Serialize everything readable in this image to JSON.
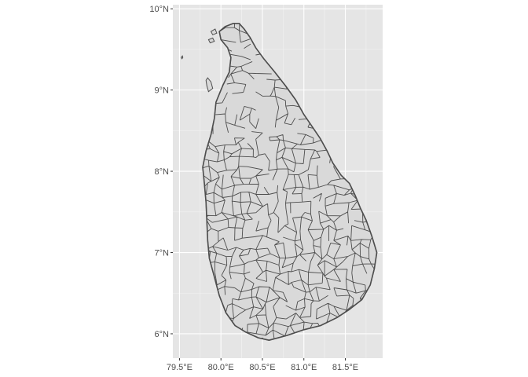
{
  "map": {
    "country": "Sri Lanka",
    "projection": "geographic",
    "x_range": [
      79.42,
      81.95
    ],
    "y_range": [
      5.7,
      10.05
    ],
    "grid": true,
    "panel_color": "#e5e5e5",
    "grid_color": "#ffffff",
    "land_fill": "#d9d9d9",
    "border_color": "#4d4d4d",
    "x_ticks": [
      {
        "value": 79.5,
        "label": "79.5°E"
      },
      {
        "value": 80.0,
        "label": "80.0°E"
      },
      {
        "value": 80.5,
        "label": "80.5°E"
      },
      {
        "value": 81.0,
        "label": "81.0°E"
      },
      {
        "value": 81.5,
        "label": "81.5°E"
      }
    ],
    "y_ticks": [
      {
        "value": 6,
        "label": "6°N"
      },
      {
        "value": 7,
        "label": "7°N"
      },
      {
        "value": 8,
        "label": "8°N"
      },
      {
        "value": 9,
        "label": "9°N"
      },
      {
        "value": 10,
        "label": "10°N"
      }
    ],
    "outline": [
      [
        80.58,
        5.92
      ],
      [
        80.45,
        5.95
      ],
      [
        80.3,
        6.02
      ],
      [
        80.17,
        6.1
      ],
      [
        80.06,
        6.26
      ],
      [
        79.98,
        6.47
      ],
      [
        79.92,
        6.7
      ],
      [
        79.86,
        6.93
      ],
      [
        79.84,
        7.15
      ],
      [
        79.83,
        7.38
      ],
      [
        79.82,
        7.62
      ],
      [
        79.8,
        7.85
      ],
      [
        79.78,
        8.05
      ],
      [
        79.82,
        8.25
      ],
      [
        79.88,
        8.45
      ],
      [
        79.92,
        8.65
      ],
      [
        79.94,
        8.85
      ],
      [
        80.02,
        9.05
      ],
      [
        80.1,
        9.22
      ],
      [
        80.12,
        9.4
      ],
      [
        80.08,
        9.52
      ],
      [
        80.0,
        9.62
      ],
      [
        79.98,
        9.72
      ],
      [
        80.05,
        9.78
      ],
      [
        80.15,
        9.82
      ],
      [
        80.22,
        9.82
      ],
      [
        80.28,
        9.75
      ],
      [
        80.35,
        9.65
      ],
      [
        80.42,
        9.52
      ],
      [
        80.52,
        9.38
      ],
      [
        80.65,
        9.22
      ],
      [
        80.78,
        9.05
      ],
      [
        80.9,
        8.88
      ],
      [
        81.0,
        8.7
      ],
      [
        81.1,
        8.55
      ],
      [
        81.2,
        8.4
      ],
      [
        81.28,
        8.25
      ],
      [
        81.35,
        8.1
      ],
      [
        81.45,
        7.95
      ],
      [
        81.55,
        7.85
      ],
      [
        81.62,
        7.7
      ],
      [
        81.68,
        7.55
      ],
      [
        81.75,
        7.4
      ],
      [
        81.82,
        7.2
      ],
      [
        81.88,
        7.0
      ],
      [
        81.85,
        6.8
      ],
      [
        81.8,
        6.6
      ],
      [
        81.7,
        6.42
      ],
      [
        81.55,
        6.3
      ],
      [
        81.4,
        6.2
      ],
      [
        81.2,
        6.1
      ],
      [
        81.0,
        6.05
      ],
      [
        80.8,
        5.98
      ]
    ],
    "peninsula": [
      [
        79.85,
        8.98
      ],
      [
        79.83,
        9.05
      ],
      [
        79.82,
        9.12
      ],
      [
        79.84,
        9.15
      ],
      [
        79.88,
        9.1
      ],
      [
        79.9,
        9.02
      ]
    ],
    "islands": [
      [
        [
          79.52,
          9.4
        ],
        [
          79.535,
          9.42
        ],
        [
          79.54,
          9.4
        ],
        [
          79.53,
          9.385
        ]
      ],
      [
        [
          79.85,
          9.62
        ],
        [
          79.9,
          9.64
        ],
        [
          79.92,
          9.6
        ],
        [
          79.87,
          9.58
        ]
      ],
      [
        [
          79.88,
          9.72
        ],
        [
          79.93,
          9.75
        ],
        [
          79.95,
          9.7
        ],
        [
          79.9,
          9.68
        ]
      ]
    ]
  }
}
